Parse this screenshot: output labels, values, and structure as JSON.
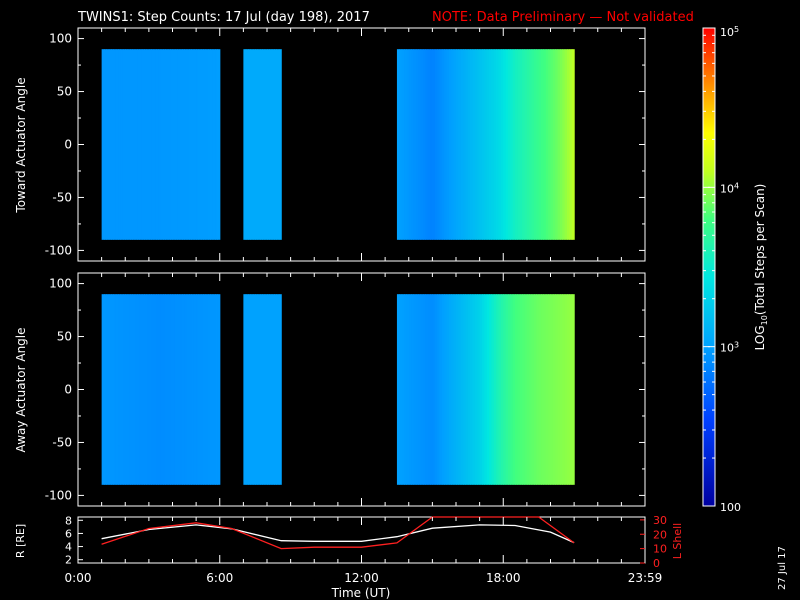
{
  "header": {
    "title": "TWINS1: Step Counts: 17 Jul (day 198), 2017",
    "note": "NOTE: Data Preliminary — Not validated"
  },
  "colors": {
    "background": "#000000",
    "foreground": "#ffffff",
    "note": "#ff0000",
    "r_line": "#ffffff",
    "lshell_line": "#ff2020"
  },
  "chart_data": [
    {
      "type": "heatmap",
      "ylabel": "Toward Actuator Angle",
      "ylim": [
        -110,
        110
      ],
      "yticks": [
        "100",
        "50",
        "0",
        "-50",
        "-100"
      ],
      "xlim": [
        0,
        24
      ],
      "data_blocks_utc_hours": [
        [
          1.0,
          6.0
        ],
        [
          7.0,
          8.6
        ],
        [
          13.5,
          21.0
        ]
      ],
      "angle_range": [
        -90,
        90
      ],
      "log10_counts_profile": [
        {
          "t": 1.0,
          "v": 2.95
        },
        {
          "t": 3.5,
          "v": 2.95
        },
        {
          "t": 6.0,
          "v": 2.98
        },
        {
          "t": 7.0,
          "v": 3.05
        },
        {
          "t": 8.6,
          "v": 3.05
        },
        {
          "t": 13.5,
          "v": 3.0
        },
        {
          "t": 15.0,
          "v": 2.85
        },
        {
          "t": 17.0,
          "v": 3.2
        },
        {
          "t": 17.8,
          "v": 3.35
        },
        {
          "t": 18.5,
          "v": 3.55
        },
        {
          "t": 19.5,
          "v": 3.75
        },
        {
          "t": 20.3,
          "v": 3.9
        },
        {
          "t": 21.0,
          "v": 4.1
        }
      ]
    },
    {
      "type": "heatmap",
      "ylabel": "Away Actuator Angle",
      "ylim": [
        -110,
        110
      ],
      "yticks": [
        "100",
        "50",
        "0",
        "-50",
        "-100"
      ],
      "xlim": [
        0,
        24
      ],
      "data_blocks_utc_hours": [
        [
          1.0,
          6.0
        ],
        [
          7.0,
          8.6
        ],
        [
          13.5,
          21.0
        ]
      ],
      "angle_range": [
        -90,
        90
      ],
      "log10_counts_profile": [
        {
          "t": 1.0,
          "v": 2.95
        },
        {
          "t": 3.5,
          "v": 2.9
        },
        {
          "t": 6.0,
          "v": 2.95
        },
        {
          "t": 7.0,
          "v": 3.0
        },
        {
          "t": 8.6,
          "v": 3.0
        },
        {
          "t": 13.5,
          "v": 3.0
        },
        {
          "t": 15.0,
          "v": 2.9
        },
        {
          "t": 17.0,
          "v": 3.3
        },
        {
          "t": 17.8,
          "v": 3.6
        },
        {
          "t": 18.5,
          "v": 3.8
        },
        {
          "t": 19.5,
          "v": 3.9
        },
        {
          "t": 20.3,
          "v": 3.95
        },
        {
          "t": 21.0,
          "v": 4.0
        }
      ]
    },
    {
      "type": "line",
      "ylabel_left": "R [RE]",
      "ylabel_right": "L Shell",
      "left_ticks": [
        "8",
        "6",
        "4",
        "2"
      ],
      "right_ticks": [
        "30",
        "20",
        "10",
        "0"
      ],
      "ylim_left": [
        1.5,
        8.5
      ],
      "ylim_right": [
        0,
        32
      ],
      "xlim": [
        0,
        24
      ],
      "xticks": [
        "0:00",
        "6:00",
        "12:00",
        "18:00",
        "23:59"
      ],
      "xlabel": "Time (UT)",
      "series": [
        {
          "axis": "left",
          "x": [
            1.0,
            3.0,
            5.0,
            6.5,
            8.6,
            10.0,
            12.0,
            13.5,
            15.0,
            17.0,
            18.5,
            20.0,
            21.0
          ],
          "y": [
            5.2,
            6.6,
            7.3,
            6.7,
            4.9,
            4.8,
            4.8,
            5.5,
            6.8,
            7.3,
            7.2,
            6.2,
            4.6
          ]
        },
        {
          "axis": "right",
          "x": [
            1.0,
            3.0,
            5.0,
            6.5,
            8.6,
            10.0,
            12.0,
            13.5,
            15.0,
            19.5,
            21.0
          ],
          "y": [
            13,
            24,
            28,
            24,
            10,
            11,
            11,
            14,
            32,
            32,
            14
          ]
        }
      ]
    },
    {
      "type": "colorbar",
      "label": "LOG10(Total Steps per Scan)",
      "label_main": "LOG",
      "label_sub": "10",
      "label_rest": "(Total Steps per Scan)",
      "range_log10": [
        2,
        5
      ],
      "ticks": [
        {
          "value": 5,
          "base": "10",
          "exp": "5"
        },
        {
          "value": 4,
          "base": "10",
          "exp": "4"
        },
        {
          "value": 3,
          "base": "10",
          "exp": "3"
        },
        {
          "value": 2,
          "plain": "100"
        }
      ]
    }
  ],
  "date_stamp": "27 Jul 17"
}
